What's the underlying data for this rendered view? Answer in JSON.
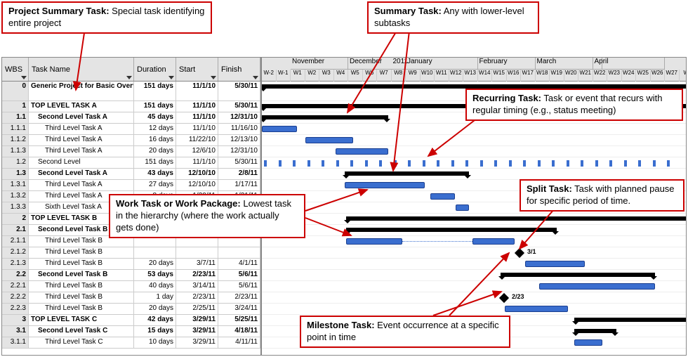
{
  "callouts": {
    "project_summary": {
      "label": "Project Summary Task:",
      "text": " Special task identifying entire project"
    },
    "summary_task": {
      "label": "Summary Task:",
      "text": " Any with lower-level subtasks"
    },
    "recurring_task": {
      "label": "Recurring Task:",
      "text": " Task or event that recurs with regular timing (e.g., status meeting)"
    },
    "work_task": {
      "label": "Work Task or Work Package:",
      "text": " Lowest task in the hierarchy (where the work actually gets done)"
    },
    "split_task": {
      "label": "Split Task:",
      "text": " Task with planned pause for specific period of time."
    },
    "milestone_task": {
      "label": "Milestone Task:",
      "text": " Event occurrence at a specific point in time"
    }
  },
  "columns": {
    "wbs": "WBS",
    "name": "Task Name",
    "duration": "Duration",
    "start": "Start",
    "finish": "Finish"
  },
  "timeline": {
    "year_label": "2011",
    "months": [
      "November",
      "December",
      "January",
      "February",
      "March",
      "April"
    ],
    "weeks": [
      "W-2",
      "W-1",
      "W1",
      "W2",
      "W3",
      "W4",
      "W5",
      "W6",
      "W7",
      "W8",
      "W9",
      "W10",
      "W11",
      "W12",
      "W13",
      "W14",
      "W15",
      "W16",
      "W17",
      "W18",
      "W19",
      "W20",
      "W21",
      "W22",
      "W23",
      "W24",
      "W25",
      "W26",
      "W27",
      "W"
    ]
  },
  "rows": [
    {
      "wbs": "0",
      "name": "Generic Project for Basic Overview",
      "dur": "151 days",
      "start": "11/1/10",
      "finish": "5/30/11",
      "type": "project",
      "indent": 0,
      "bar": [
        0,
        620
      ]
    },
    {
      "wbs": "1",
      "name": "TOP LEVEL TASK A",
      "dur": "151 days",
      "start": "11/1/10",
      "finish": "5/30/11",
      "type": "summary",
      "indent": 0,
      "bar": [
        0,
        620
      ]
    },
    {
      "wbs": "1.1",
      "name": "Second Level Task A",
      "dur": "45 days",
      "start": "11/1/10",
      "finish": "12/31/10",
      "type": "summary",
      "indent": 1,
      "bar": [
        0,
        180
      ]
    },
    {
      "wbs": "1.1.1",
      "name": "Third Level Task A",
      "dur": "12 days",
      "start": "11/1/10",
      "finish": "11/16/10",
      "type": "task",
      "indent": 2,
      "bar": [
        0,
        50
      ]
    },
    {
      "wbs": "1.1.2",
      "name": "Third Level Task A",
      "dur": "16 days",
      "start": "11/22/10",
      "finish": "12/13/10",
      "type": "task",
      "indent": 2,
      "bar": [
        62,
        130
      ]
    },
    {
      "wbs": "1.1.3",
      "name": "Third Level Task A",
      "dur": "20 days",
      "start": "12/6/10",
      "finish": "12/31/10",
      "type": "task",
      "indent": 2,
      "bar": [
        105,
        180
      ]
    },
    {
      "wbs": "1.2",
      "name": "Second Level",
      "dur": "151 days",
      "start": "11/1/10",
      "finish": "5/30/11",
      "type": "recurring",
      "indent": 1,
      "ticks": 29
    },
    {
      "wbs": "1.3",
      "name": "Second Level Task A",
      "dur": "43 days",
      "start": "12/10/10",
      "finish": "2/8/11",
      "type": "summary",
      "indent": 1,
      "bar": [
        118,
        295
      ]
    },
    {
      "wbs": "1.3.1",
      "name": "Third Level Task A",
      "dur": "27 days",
      "start": "12/10/10",
      "finish": "1/17/11",
      "type": "task",
      "indent": 2,
      "bar": [
        118,
        232
      ]
    },
    {
      "wbs": "1.3.2",
      "name": "Third Level Task A",
      "dur": "8 days",
      "start": "1/20/11",
      "finish": "1/31/11",
      "type": "task",
      "indent": 2,
      "bar": [
        240,
        275
      ]
    },
    {
      "wbs": "1.3.3",
      "name": "Sixth Level Task A",
      "dur": "",
      "start": "",
      "finish": "",
      "type": "task",
      "indent": 2,
      "bar": [
        276,
        295
      ]
    },
    {
      "wbs": "2",
      "name": "TOP LEVEL TASK B",
      "dur": "",
      "start": "",
      "finish": "",
      "type": "summary",
      "indent": 0,
      "bar": [
        120,
        620
      ]
    },
    {
      "wbs": "2.1",
      "name": "Second Level Task B",
      "dur": "",
      "start": "",
      "finish": "",
      "type": "summary",
      "indent": 1,
      "bar": [
        120,
        420
      ]
    },
    {
      "wbs": "2.1.1",
      "name": "Third Level Task B",
      "dur": "",
      "start": "",
      "finish": "",
      "type": "split",
      "indent": 2,
      "bar": [
        120,
        200
      ],
      "bar2": [
        300,
        360
      ]
    },
    {
      "wbs": "2.1.2",
      "name": "Third Level Task B",
      "dur": "",
      "start": "",
      "finish": "",
      "type": "milestone",
      "indent": 2,
      "ms": 362,
      "ms_label": "3/1"
    },
    {
      "wbs": "2.1.3",
      "name": "Third Level Task B",
      "dur": "20 days",
      "start": "3/7/11",
      "finish": "4/1/11",
      "type": "task",
      "indent": 2,
      "bar": [
        375,
        460
      ]
    },
    {
      "wbs": "2.2",
      "name": "Second Level Task B",
      "dur": "53 days",
      "start": "2/23/11",
      "finish": "5/6/11",
      "type": "summary",
      "indent": 1,
      "bar": [
        340,
        560
      ]
    },
    {
      "wbs": "2.2.1",
      "name": "Third Level Task B",
      "dur": "40 days",
      "start": "3/14/11",
      "finish": "5/6/11",
      "type": "task",
      "indent": 2,
      "bar": [
        395,
        560
      ]
    },
    {
      "wbs": "2.2.2",
      "name": "Third Level Task B",
      "dur": "1 day",
      "start": "2/23/11",
      "finish": "2/23/11",
      "type": "milestone",
      "indent": 2,
      "ms": 340,
      "ms_label": "2/23"
    },
    {
      "wbs": "2.2.3",
      "name": "Third Level Task B",
      "dur": "20 days",
      "start": "2/25/11",
      "finish": "3/24/11",
      "type": "task",
      "indent": 2,
      "bar": [
        346,
        436
      ]
    },
    {
      "wbs": "3",
      "name": "TOP LEVEL TASK C",
      "dur": "42 days",
      "start": "3/29/11",
      "finish": "5/25/11",
      "type": "summary",
      "indent": 0,
      "bar": [
        445,
        610
      ]
    },
    {
      "wbs": "3.1",
      "name": "Second Level Task C",
      "dur": "15 days",
      "start": "3/29/11",
      "finish": "4/18/11",
      "type": "summary",
      "indent": 1,
      "bar": [
        445,
        505
      ]
    },
    {
      "wbs": "3.1.1",
      "name": "Third Level Task C",
      "dur": "10 days",
      "start": "3/29/11",
      "finish": "4/11/11",
      "type": "task",
      "indent": 2,
      "bar": [
        445,
        485
      ]
    }
  ],
  "colors": {
    "bar": "#3a6ecf",
    "bar_border": "#1a3e8f",
    "summary": "#000",
    "callout_border": "#c00",
    "grid_bg": "#e4e4e4"
  }
}
